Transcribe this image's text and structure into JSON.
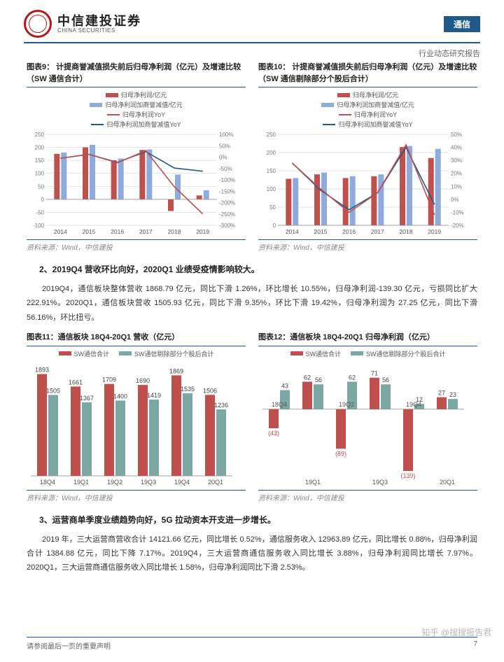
{
  "header": {
    "brand_cn": "中信建投证券",
    "brand_en": "CHINA SECURITIES",
    "tag": "通信",
    "subtitle": "行业动态研究报告"
  },
  "colors": {
    "red": "#c0504d",
    "blue": "#8faadc",
    "teal": "#7ba8a4",
    "navy": "#1f5a8a",
    "grid": "#cccccc"
  },
  "chart9": {
    "caption": "图表9：  计提商誉减值损失前后归母净利润（亿元）及增速比较（SW 通信合计）",
    "legend": [
      "归母净利润/亿元",
      "归母净利润加商誉减值/亿元",
      "归母净利润YoY",
      "归母净利润加商誉减值YoY"
    ],
    "source": "资料来源：Wind，中信建投",
    "years": [
      "2014",
      "2015",
      "2016",
      "2017",
      "2018",
      "2019"
    ],
    "bar1": [
      175,
      200,
      150,
      190,
      -45,
      15
    ],
    "bar2": [
      180,
      210,
      157,
      192,
      95,
      35
    ],
    "line1": [
      -5,
      12,
      -25,
      28,
      -130,
      -250
    ],
    "line2": [
      -5,
      12,
      -23,
      24,
      -48,
      -62
    ],
    "yleft": {
      "min": -100,
      "max": 250,
      "step": 50
    },
    "yright": {
      "min": -300,
      "max": 100,
      "step": 50
    }
  },
  "chart10": {
    "caption": "图表10：  计提商誉减值损失前后归母净利润（亿元）及增速比较（SW 通信剔除部分个股后合计）",
    "legend": [
      "归母净利润/亿元",
      "归母净利润加商誉减值/亿元",
      "归母净利润YoY",
      "归母净利润加商誉减值YoY"
    ],
    "source": "资料来源：Wind，中信建投",
    "years": [
      "2014",
      "2015",
      "2016",
      "2017",
      "2018",
      "2019"
    ],
    "bar1": [
      128,
      140,
      130,
      135,
      215,
      185
    ],
    "bar2": [
      130,
      145,
      135,
      140,
      218,
      210
    ],
    "line1": [
      28,
      8,
      -10,
      5,
      42,
      -12
    ],
    "line2": [
      28,
      7,
      -8,
      5,
      40,
      -4
    ],
    "yleft": {
      "min": 0,
      "max": 250,
      "step": 50
    },
    "yright": {
      "min": -20,
      "max": 50,
      "step": 10
    }
  },
  "section2": {
    "heading": "2、2019Q4 营收环比向好，2020Q1 业绩受疫情影响较大。",
    "para": "2019Q4，通信板块整体营收 1868.79 亿元，同比下滑 1.26%，环比增长 10.55%，归母净利润-139.30 亿元，亏损同比扩大 222.91%。2020Q1，通信板块营收 1505.93 亿元，同比下滑 9.35%，环比下滑 19.42%，归母净利润为 27.25 亿元，同比下滑 56.16%，环比扭亏。"
  },
  "chart11": {
    "caption": "图表11：通信板块 18Q4-20Q1 营收（亿元）",
    "legend": [
      "SW通信合计",
      "SW通信剔除部分个股后合计"
    ],
    "source": "资料来源：Wind，中信建投",
    "cats": [
      "18Q4",
      "19Q1",
      "19Q2",
      "19Q3",
      "19Q4",
      "20Q1"
    ],
    "s1": [
      1893,
      1661,
      1709,
      1690,
      1869,
      1506
    ],
    "s2": [
      1505,
      1367,
      1400,
      1419,
      1535,
      1236
    ],
    "ymax": 1900
  },
  "chart12": {
    "caption": "图表12：通信板块 18Q4-20Q1 归母净利润（亿元）",
    "legend": [
      "SW通信合计",
      "SW通信剔除部分个股后合计"
    ],
    "source": "资料来源：Wind，中信建投",
    "cats": [
      "18Q4",
      "19Q1",
      "19Q2",
      "19Q3",
      "19Q4",
      "20Q1"
    ],
    "s1": [
      -43,
      62,
      -89,
      71,
      -139,
      27
    ],
    "s2": [
      43,
      56,
      62,
      56,
      12,
      23
    ],
    "ymin": -150,
    "ymax": 80
  },
  "section3": {
    "heading": "3、运营商单季度业绩趋势向好，5G 拉动资本开支进一步增长。",
    "para": "2019 年，三大运营商营收合计 14121.66 亿元，同比增长 0.52%，通信服务收入 12963.89 亿元，同比增长 0.88%，归母净利润合计 1384.88 亿元，同比下降 7.17%。2019Q4，三大运营商通信服务收入同比增长 3.88%，归母净利润同比增长 7.97%。2020Q1，三大运营商通信服务收入同比增长 1.58%，归母净利润同比下滑 2.53%。"
  },
  "footer": {
    "note": "请参阅最后一页的重要声明",
    "page": "7"
  },
  "watermark": "知乎 @搜搜报告君"
}
